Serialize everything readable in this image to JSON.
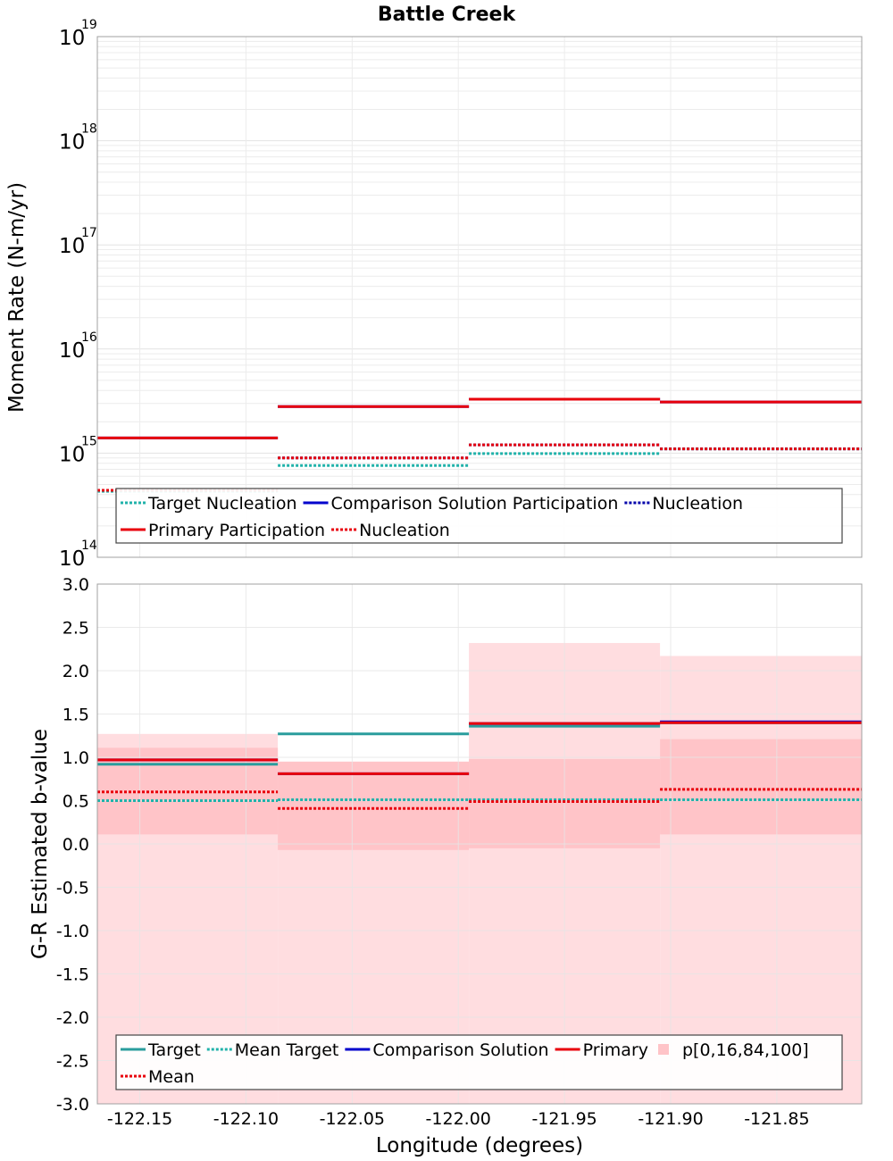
{
  "chart_data": [
    {
      "type": "line",
      "title": "Battle Creek",
      "ylabel": "Moment Rate (N-m/yr)",
      "xlabel": "",
      "yscale": "log",
      "ylim": [
        100000000000000.0,
        1e+19
      ],
      "xlim": [
        -122.17,
        -121.81
      ],
      "grid": true,
      "y_ticks": [
        {
          "base": "10",
          "exp": "14",
          "value": 100000000000000.0
        },
        {
          "base": "10",
          "exp": "15",
          "value": 1000000000000000.0
        },
        {
          "base": "10",
          "exp": "16",
          "value": 1e+16
        },
        {
          "base": "10",
          "exp": "17",
          "value": 1e+17
        },
        {
          "base": "10",
          "exp": "18",
          "value": 1e+18
        },
        {
          "base": "10",
          "exp": "19",
          "value": 1e+19
        }
      ],
      "bins": [
        {
          "x0": -122.17,
          "x1": -122.085
        },
        {
          "x0": -122.085,
          "x1": -121.995
        },
        {
          "x0": -121.995,
          "x1": -121.905
        },
        {
          "x0": -121.905,
          "x1": -121.81
        }
      ],
      "series": [
        {
          "name": "Target Nucleation",
          "style": "dotted",
          "color": "#20b2aa",
          "values": [
            430000000000000.0,
            760000000000000.0,
            990000000000000.0,
            1100000000000000.0
          ]
        },
        {
          "name": "Comparison Solution Participation",
          "style": "solid",
          "color": "#0000cc",
          "values": [
            1400000000000000.0,
            2800000000000000.0,
            3300000000000000.0,
            3100000000000000.0
          ]
        },
        {
          "name": "Nucleation",
          "style": "dotted",
          "color": "#0000aa",
          "values": [
            440000000000000.0,
            900000000000000.0,
            1200000000000000.0,
            1100000000000000.0
          ]
        },
        {
          "name": "Primary Participation",
          "style": "solid",
          "color": "#e8000b",
          "values": [
            1400000000000000.0,
            2800000000000000.0,
            3300000000000000.0,
            3100000000000000.0
          ]
        },
        {
          "name": "Nucleation",
          "style": "dotted",
          "color": "#e8000b",
          "values": [
            440000000000000.0,
            900000000000000.0,
            1200000000000000.0,
            1100000000000000.0
          ]
        }
      ],
      "legend": {
        "placement": "bottom-center",
        "rows": [
          [
            {
              "label": "Target Nucleation",
              "color": "#20b2aa",
              "style": "dotted"
            },
            {
              "label": "Comparison Solution Participation",
              "color": "#0000cc",
              "style": "solid"
            },
            {
              "label": "Nucleation",
              "color": "#0000aa",
              "style": "dotted"
            }
          ],
          [
            {
              "label": "Primary Participation",
              "color": "#e8000b",
              "style": "solid"
            },
            {
              "label": "Nucleation",
              "color": "#e8000b",
              "style": "dotted"
            }
          ]
        ]
      }
    },
    {
      "type": "line",
      "title": "",
      "xlabel": "Longitude (degrees)",
      "ylabel": "G-R Estimated b-value",
      "ylim": [
        -3.0,
        3.0
      ],
      "xlim": [
        -122.17,
        -121.81
      ],
      "grid": true,
      "y_ticks": [
        "3.0",
        "2.5",
        "2.0",
        "1.5",
        "1.0",
        "0.5",
        "0.0",
        "-0.5",
        "-1.0",
        "-1.5",
        "-2.0",
        "-2.5",
        "-3.0"
      ],
      "x_ticks": [
        "-122.15",
        "-122.10",
        "-122.05",
        "-122.00",
        "-121.95",
        "-121.90",
        "-121.85"
      ],
      "bins": [
        {
          "x0": -122.17,
          "x1": -122.085
        },
        {
          "x0": -122.085,
          "x1": -121.995
        },
        {
          "x0": -121.995,
          "x1": -121.905
        },
        {
          "x0": -121.905,
          "x1": -121.81
        }
      ],
      "bands": {
        "name": "p[0,16,84,100]",
        "color": "#ffdde0",
        "inner_color": "#ffc4c8",
        "outer": [
          {
            "low": -3.0,
            "high": 1.27
          },
          {
            "low": -3.0,
            "high": 0.95
          },
          {
            "low": -3.0,
            "high": 2.32
          },
          {
            "low": -3.0,
            "high": 2.17
          }
        ],
        "inner": [
          {
            "low": 0.11,
            "high": 1.11
          },
          {
            "low": -0.07,
            "high": 0.95
          },
          {
            "low": -0.05,
            "high": 0.98
          },
          {
            "low": 0.11,
            "high": 1.21
          }
        ]
      },
      "series": [
        {
          "name": "Target",
          "style": "solid",
          "color": "#2a9d9d",
          "values": [
            0.92,
            1.27,
            1.36,
            1.4
          ]
        },
        {
          "name": "Mean Target",
          "style": "dotted",
          "color": "#20b2aa",
          "values": [
            0.5,
            0.51,
            0.51,
            0.51
          ]
        },
        {
          "name": "Comparison Solution",
          "style": "solid",
          "color": "#0000cc",
          "values": [
            0.97,
            0.81,
            1.39,
            1.41
          ]
        },
        {
          "name": "Primary",
          "style": "solid",
          "color": "#e8000b",
          "values": [
            0.97,
            0.81,
            1.39,
            1.4
          ]
        },
        {
          "name": "Mean",
          "style": "dotted",
          "color": "#e8000b",
          "values": [
            0.6,
            0.41,
            0.49,
            0.63
          ]
        }
      ],
      "legend": {
        "placement": "bottom-center",
        "rows": [
          [
            {
              "label": "Target",
              "color": "#2a9d9d",
              "style": "solid"
            },
            {
              "label": "Mean Target",
              "color": "#20b2aa",
              "style": "dotted"
            },
            {
              "label": "Comparison Solution",
              "color": "#0000cc",
              "style": "solid"
            },
            {
              "label": "Primary",
              "color": "#e8000b",
              "style": "solid"
            },
            {
              "label": "p[0,16,84,100]",
              "color": "#ffc4c8",
              "style": "box"
            }
          ],
          [
            {
              "label": "Mean",
              "color": "#e8000b",
              "style": "dotted"
            }
          ]
        ]
      }
    }
  ]
}
